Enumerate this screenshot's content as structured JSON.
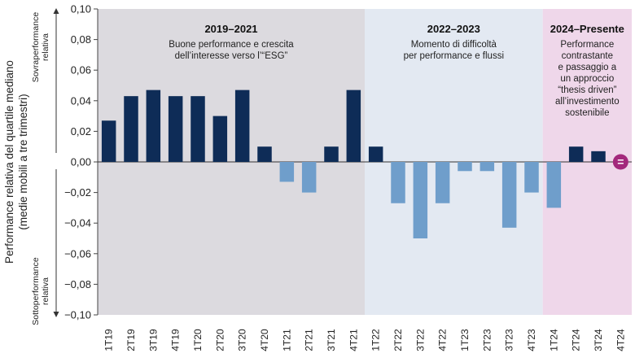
{
  "chart_data": {
    "type": "bar",
    "ylabel_lines": [
      "Performance relativa del quartile mediano",
      "(medie mobili a tre trimestri)"
    ],
    "ylim": [
      -0.1,
      0.1
    ],
    "yticks": [
      "0,10",
      "0,08",
      "0,06",
      "0,04",
      "0,02",
      "0,00",
      "−0,02",
      "−0,04",
      "−0,06",
      "−0,08",
      "−0,10"
    ],
    "ytick_values": [
      0.1,
      0.08,
      0.06,
      0.04,
      0.02,
      0,
      -0.02,
      -0.04,
      -0.06,
      -0.08,
      -0.1
    ],
    "side_labels": {
      "top": [
        "Sovraperformance",
        "relativa"
      ],
      "bottom": [
        "Sottoperformance",
        "relativa"
      ]
    },
    "categories": [
      "1T19",
      "2T19",
      "3T19",
      "4T19",
      "1T20",
      "2T20",
      "3T20",
      "4T20",
      "1T21",
      "2T21",
      "3T21",
      "4T21",
      "1T22",
      "2T22",
      "3T22",
      "4T22",
      "1T23",
      "2T23",
      "3T23",
      "4T23",
      "1T24",
      "2T24",
      "3T24",
      "4T24"
    ],
    "values": [
      0.027,
      0.043,
      0.047,
      0.043,
      0.043,
      0.03,
      0.047,
      0.01,
      -0.013,
      -0.02,
      0.01,
      0.047,
      0.01,
      -0.027,
      -0.05,
      -0.027,
      -0.006,
      -0.006,
      -0.043,
      -0.02,
      -0.03,
      0.01,
      0.007,
      null
    ],
    "last_marker": "=",
    "colors": {
      "positive": "#0e2c57",
      "negative": "#6f9ecb",
      "marker": "#a3287c",
      "period_1": "#dcdadf",
      "period_2": "#e3e9f2",
      "period_3": "#efd7ea"
    },
    "periods": [
      {
        "title": "2019–2021",
        "desc": [
          "Buone performance e crescita",
          "dell’interesse verso l’“ESG”"
        ],
        "start": 0,
        "end": 11
      },
      {
        "title": "2022–2023",
        "desc": [
          "Momento di difficoltà",
          "per performance e flussi"
        ],
        "start": 12,
        "end": 19
      },
      {
        "title": "2024–Presente",
        "desc": [
          "Performance",
          "contrastante",
          "e passaggio a",
          "un approccio",
          "“thesis driven”",
          "all’investimento",
          "sostenibile"
        ],
        "start": 20,
        "end": 23
      }
    ]
  }
}
